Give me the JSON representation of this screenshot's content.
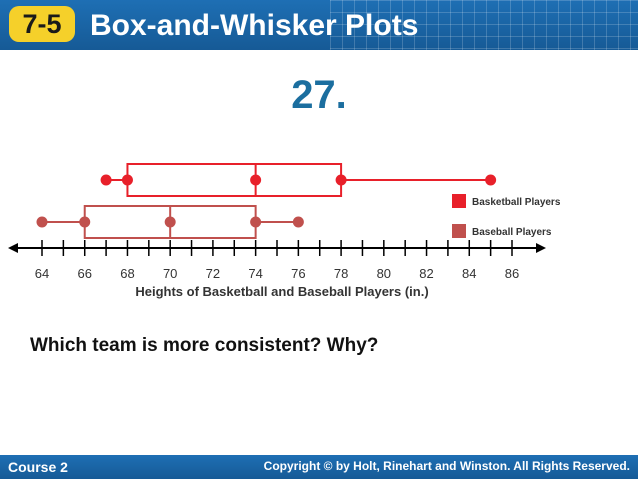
{
  "header": {
    "lesson": "7-5",
    "title": "Box-and-Whisker Plots"
  },
  "problem_number": "27.",
  "question": "Which team is more consistent? Why?",
  "footer": {
    "course": "Course 2",
    "copyright": "Copyright © by Holt, Rinehart and Winston. All Rights Reserved."
  },
  "colors": {
    "header_bg": "#1e6fb4",
    "badge": "#f5d02a",
    "problem_number": "#1b6e9f",
    "basketball": "#e8202a",
    "baseball": "#c0504d"
  },
  "chart_data": {
    "type": "box",
    "xlabel": "Heights of Basketball and Baseball Players (in.)",
    "xlim": [
      64,
      86
    ],
    "tick_labels": [
      "64",
      "66",
      "68",
      "70",
      "72",
      "74",
      "76",
      "78",
      "80",
      "82",
      "84",
      "86"
    ],
    "series": [
      {
        "name": "Basketball Players",
        "color": "#e8202a",
        "min": 67,
        "q1": 68,
        "median": 74,
        "q3": 78,
        "max": 85
      },
      {
        "name": "Baseball Players",
        "color": "#c0504d",
        "min": 64,
        "q1": 66,
        "median": 70,
        "q3": 74,
        "max": 76
      }
    ],
    "legend_position": "right"
  }
}
